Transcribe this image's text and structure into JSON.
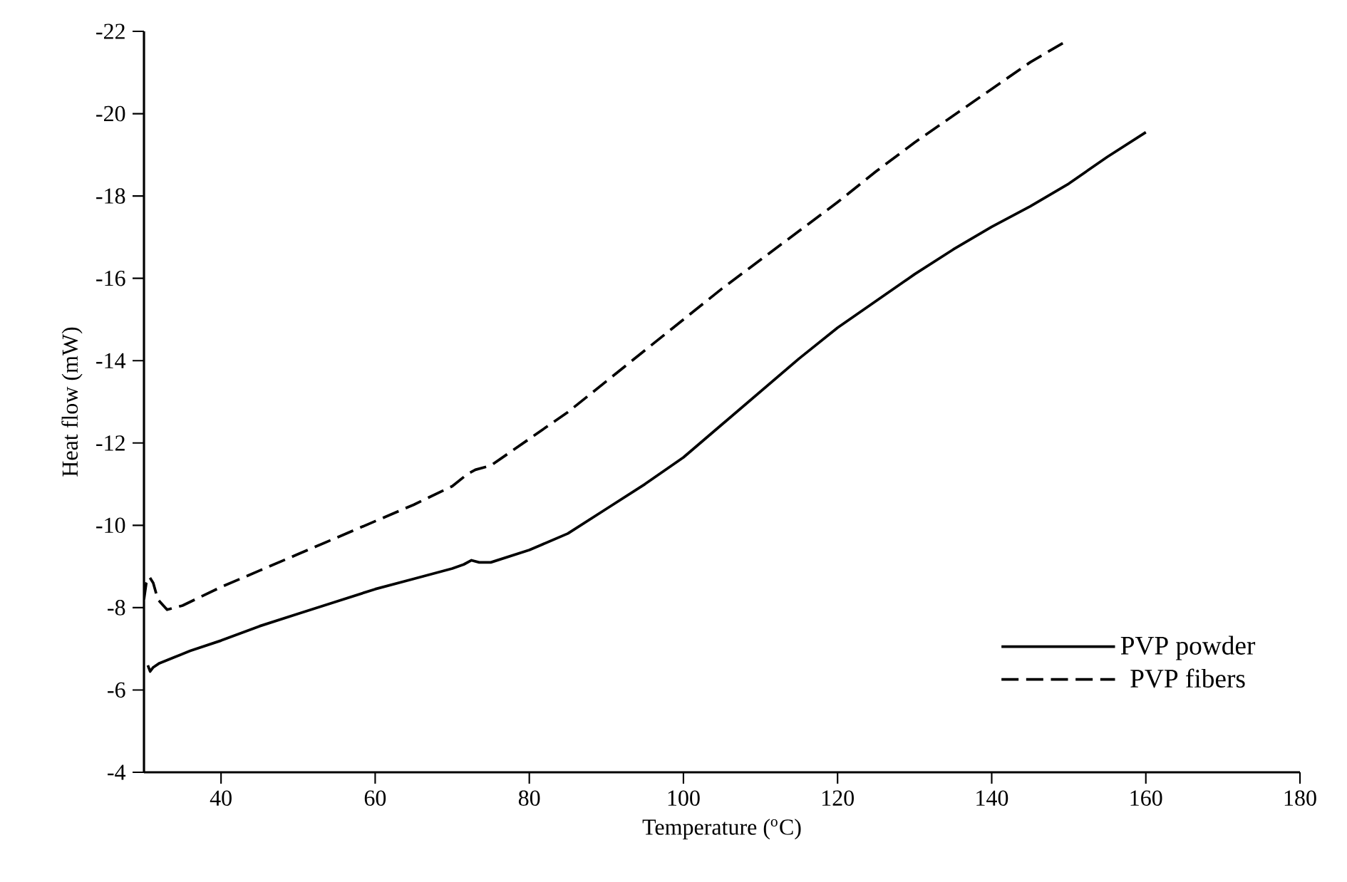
{
  "chart_data": {
    "type": "line",
    "xlabel": "Temperature ($^{o}$C)",
    "ylabel": "Heat flow (mW)",
    "xlim": [
      30,
      180
    ],
    "xticks": [
      40,
      60,
      80,
      100,
      120,
      140,
      160,
      180
    ],
    "ylim": [
      -4,
      -22
    ],
    "yticks": [
      -4,
      -6,
      -8,
      -10,
      -12,
      -14,
      -16,
      -18,
      -20,
      -22
    ],
    "grid": false,
    "legend": "bottom right",
    "marker": "none",
    "series": [
      {
        "name": "PVP powder",
        "color": "#000000",
        "line_style": "solid",
        "x": [
          30.5,
          30.8,
          31.2,
          32,
          34,
          36,
          40,
          45,
          50,
          55,
          60,
          65,
          70,
          71.5,
          72.5,
          73.5,
          75,
          80,
          85,
          90,
          95,
          100,
          105,
          110,
          115,
          120,
          125,
          130,
          135,
          140,
          145,
          150,
          155,
          160
        ],
        "values": [
          -6.6,
          -6.45,
          -6.55,
          -6.65,
          -6.8,
          -6.95,
          -7.2,
          -7.55,
          -7.85,
          -8.15,
          -8.45,
          -8.7,
          -8.95,
          -9.05,
          -9.15,
          -9.1,
          -9.1,
          -9.4,
          -9.8,
          -10.4,
          -11.0,
          -11.65,
          -12.45,
          -13.25,
          -14.05,
          -14.8,
          -15.45,
          -16.1,
          -16.7,
          -17.25,
          -17.75,
          -18.3,
          -18.95,
          -19.55
        ]
      },
      {
        "name": "PVP fibers",
        "color": "#000000",
        "line_style": "dashed",
        "x": [
          30,
          30.3,
          30.7,
          31.2,
          31.8,
          33,
          35,
          40,
          45,
          50,
          55,
          60,
          65,
          70,
          72,
          73,
          75,
          80,
          85,
          90,
          95,
          100,
          105,
          110,
          115,
          120,
          125,
          130,
          135,
          140,
          145,
          150
        ],
        "values": [
          -8.2,
          -8.6,
          -8.75,
          -8.6,
          -8.2,
          -7.95,
          -8.05,
          -8.5,
          -8.9,
          -9.3,
          -9.7,
          -10.1,
          -10.5,
          -10.95,
          -11.25,
          -11.35,
          -11.45,
          -12.1,
          -12.75,
          -13.5,
          -14.25,
          -15.0,
          -15.75,
          -16.45,
          -17.15,
          -17.85,
          -18.6,
          -19.3,
          -19.95,
          -20.6,
          -21.25,
          -21.8
        ]
      }
    ]
  }
}
